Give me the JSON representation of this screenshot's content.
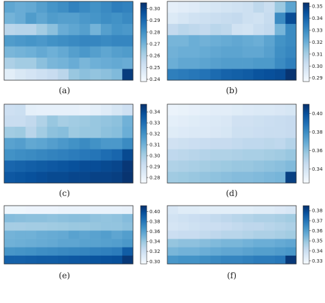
{
  "colors": {
    "colormap_low": "#f7fbff",
    "colormap_high": "#08306b",
    "frame": "#333333",
    "text": "#222222"
  },
  "chart_data": [
    {
      "type": "heatmap",
      "panel_label": "(a)",
      "colorbar_ticks": [
        "0.30",
        "0.29",
        "0.28",
        "0.27",
        "0.26",
        "0.25",
        "0.24"
      ],
      "colorbar_tick_values": [
        0.3,
        0.29,
        0.28,
        0.27,
        0.26,
        0.25,
        0.24
      ],
      "vmin": 0.238,
      "vmax": 0.305,
      "rows": 7,
      "cols": 12,
      "values": [
        [
          0.274,
          0.272,
          0.273,
          0.276,
          0.279,
          0.281,
          0.284,
          0.282,
          0.28,
          0.282,
          0.285,
          0.284
        ],
        [
          0.27,
          0.272,
          0.277,
          0.274,
          0.277,
          0.276,
          0.276,
          0.278,
          0.279,
          0.281,
          0.28,
          0.282
        ],
        [
          0.257,
          0.258,
          0.258,
          0.262,
          0.266,
          0.272,
          0.274,
          0.276,
          0.27,
          0.276,
          0.279,
          0.278
        ],
        [
          0.277,
          0.278,
          0.279,
          0.278,
          0.28,
          0.281,
          0.282,
          0.283,
          0.283,
          0.282,
          0.283,
          0.283
        ],
        [
          0.269,
          0.27,
          0.271,
          0.273,
          0.271,
          0.273,
          0.276,
          0.278,
          0.276,
          0.274,
          0.276,
          0.277
        ],
        [
          0.26,
          0.262,
          0.262,
          0.266,
          0.269,
          0.27,
          0.272,
          0.269,
          0.271,
          0.272,
          0.273,
          0.272
        ],
        [
          0.245,
          0.248,
          0.25,
          0.252,
          0.254,
          0.257,
          0.264,
          0.266,
          0.265,
          0.266,
          0.268,
          0.302
        ]
      ]
    },
    {
      "type": "heatmap",
      "panel_label": "(b)",
      "colorbar_ticks": [
        "0.35",
        "0.34",
        "0.33",
        "0.32",
        "0.31",
        "0.30",
        "0.29"
      ],
      "colorbar_tick_values": [
        0.35,
        0.34,
        0.33,
        0.32,
        0.31,
        0.3,
        0.29
      ],
      "vmin": 0.287,
      "vmax": 0.353,
      "rows": 7,
      "cols": 12,
      "values": [
        [
          0.293,
          0.294,
          0.295,
          0.297,
          0.298,
          0.299,
          0.3,
          0.301,
          0.305,
          0.302,
          0.312,
          0.323
        ],
        [
          0.296,
          0.298,
          0.3,
          0.301,
          0.302,
          0.303,
          0.304,
          0.301,
          0.3,
          0.303,
          0.33,
          0.346
        ],
        [
          0.304,
          0.306,
          0.305,
          0.304,
          0.306,
          0.305,
          0.3,
          0.299,
          0.302,
          0.304,
          0.318,
          0.33
        ],
        [
          0.318,
          0.318,
          0.32,
          0.319,
          0.32,
          0.321,
          0.322,
          0.321,
          0.32,
          0.323,
          0.328,
          0.33
        ],
        [
          0.319,
          0.32,
          0.32,
          0.321,
          0.322,
          0.323,
          0.323,
          0.322,
          0.322,
          0.324,
          0.329,
          0.331
        ],
        [
          0.32,
          0.322,
          0.322,
          0.323,
          0.324,
          0.325,
          0.325,
          0.325,
          0.326,
          0.326,
          0.33,
          0.333
        ],
        [
          0.333,
          0.334,
          0.335,
          0.336,
          0.338,
          0.34,
          0.341,
          0.342,
          0.344,
          0.345,
          0.346,
          0.352
        ]
      ]
    },
    {
      "type": "heatmap",
      "panel_label": "(c)",
      "colorbar_ticks": [
        "0.34",
        "0.33",
        "0.32",
        "0.31",
        "0.30",
        "0.29",
        "0.28"
      ],
      "colorbar_tick_values": [
        0.34,
        0.33,
        0.32,
        0.31,
        0.3,
        0.29,
        0.28
      ],
      "vmin": 0.275,
      "vmax": 0.347,
      "rows": 7,
      "cols": 12,
      "values": [
        [
          0.29,
          0.291,
          0.282,
          0.281,
          0.281,
          0.281,
          0.281,
          0.28,
          0.282,
          0.284,
          0.287,
          0.29
        ],
        [
          0.292,
          0.292,
          0.294,
          0.298,
          0.303,
          0.3,
          0.301,
          0.302,
          0.303,
          0.304,
          0.305,
          0.31
        ],
        [
          0.301,
          0.302,
          0.296,
          0.301,
          0.305,
          0.306,
          0.302,
          0.303,
          0.303,
          0.305,
          0.306,
          0.311
        ],
        [
          0.315,
          0.316,
          0.313,
          0.314,
          0.316,
          0.318,
          0.32,
          0.322,
          0.32,
          0.318,
          0.318,
          0.322
        ],
        [
          0.32,
          0.321,
          0.322,
          0.323,
          0.324,
          0.325,
          0.326,
          0.327,
          0.328,
          0.33,
          0.332,
          0.34
        ],
        [
          0.332,
          0.333,
          0.334,
          0.335,
          0.336,
          0.337,
          0.338,
          0.339,
          0.339,
          0.34,
          0.341,
          0.345
        ],
        [
          0.336,
          0.337,
          0.338,
          0.339,
          0.34,
          0.34,
          0.341,
          0.341,
          0.342,
          0.342,
          0.343,
          0.346
        ]
      ]
    },
    {
      "type": "heatmap",
      "panel_label": "(d)",
      "colorbar_ticks": [
        "0.40",
        "0.38",
        "0.36",
        "0.34"
      ],
      "colorbar_tick_values": [
        0.4,
        0.38,
        0.36,
        0.34
      ],
      "vmin": 0.325,
      "vmax": 0.41,
      "rows": 7,
      "cols": 12,
      "values": [
        [
          0.33,
          0.331,
          0.332,
          0.333,
          0.334,
          0.334,
          0.335,
          0.336,
          0.337,
          0.337,
          0.338,
          0.339
        ],
        [
          0.333,
          0.334,
          0.335,
          0.336,
          0.337,
          0.338,
          0.342,
          0.342,
          0.343,
          0.344,
          0.345,
          0.346
        ],
        [
          0.335,
          0.336,
          0.337,
          0.337,
          0.338,
          0.339,
          0.343,
          0.343,
          0.344,
          0.345,
          0.345,
          0.346
        ],
        [
          0.342,
          0.343,
          0.344,
          0.345,
          0.346,
          0.346,
          0.347,
          0.348,
          0.348,
          0.349,
          0.348,
          0.351
        ],
        [
          0.348,
          0.349,
          0.35,
          0.351,
          0.352,
          0.352,
          0.353,
          0.354,
          0.354,
          0.355,
          0.356,
          0.358
        ],
        [
          0.352,
          0.353,
          0.354,
          0.355,
          0.356,
          0.357,
          0.358,
          0.358,
          0.359,
          0.36,
          0.361,
          0.363
        ],
        [
          0.356,
          0.357,
          0.358,
          0.359,
          0.36,
          0.361,
          0.362,
          0.362,
          0.363,
          0.364,
          0.365,
          0.405
        ]
      ]
    },
    {
      "type": "heatmap",
      "panel_label": "(e)",
      "colorbar_ticks": [
        "0.40",
        "0.38",
        "0.36",
        "0.34",
        "0.32",
        "0.30"
      ],
      "colorbar_tick_values": [
        0.4,
        0.38,
        0.36,
        0.34,
        0.32,
        0.3
      ],
      "vmin": 0.295,
      "vmax": 0.412,
      "rows": 7,
      "cols": 12,
      "values": [
        [
          0.3,
          0.3,
          0.301,
          0.301,
          0.301,
          0.302,
          0.302,
          0.302,
          0.303,
          0.303,
          0.303,
          0.304
        ],
        [
          0.346,
          0.345,
          0.344,
          0.344,
          0.343,
          0.344,
          0.345,
          0.345,
          0.343,
          0.342,
          0.343,
          0.346
        ],
        [
          0.336,
          0.336,
          0.337,
          0.337,
          0.338,
          0.339,
          0.34,
          0.34,
          0.341,
          0.342,
          0.342,
          0.344
        ],
        [
          0.351,
          0.352,
          0.352,
          0.354,
          0.355,
          0.356,
          0.36,
          0.358,
          0.36,
          0.362,
          0.358,
          0.362
        ],
        [
          0.352,
          0.353,
          0.354,
          0.355,
          0.356,
          0.358,
          0.358,
          0.36,
          0.36,
          0.361,
          0.362,
          0.365
        ],
        [
          0.366,
          0.367,
          0.368,
          0.37,
          0.371,
          0.372,
          0.373,
          0.374,
          0.375,
          0.376,
          0.378,
          0.392
        ],
        [
          0.39,
          0.39,
          0.391,
          0.392,
          0.392,
          0.393,
          0.394,
          0.395,
          0.396,
          0.397,
          0.398,
          0.408
        ]
      ]
    },
    {
      "type": "heatmap",
      "panel_label": "(f)",
      "colorbar_ticks": [
        "0.38",
        "0.37",
        "0.36",
        "0.35",
        "0.34",
        "0.33"
      ],
      "colorbar_tick_values": [
        0.38,
        0.37,
        0.36,
        0.35,
        0.34,
        0.33
      ],
      "vmin": 0.327,
      "vmax": 0.385,
      "rows": 7,
      "cols": 12,
      "values": [
        [
          0.336,
          0.334,
          0.334,
          0.333,
          0.333,
          0.333,
          0.333,
          0.333,
          0.334,
          0.334,
          0.335,
          0.336
        ],
        [
          0.338,
          0.339,
          0.34,
          0.341,
          0.342,
          0.343,
          0.344,
          0.345,
          0.346,
          0.346,
          0.347,
          0.348
        ],
        [
          0.337,
          0.338,
          0.339,
          0.34,
          0.34,
          0.341,
          0.342,
          0.343,
          0.343,
          0.344,
          0.345,
          0.346
        ],
        [
          0.34,
          0.341,
          0.341,
          0.342,
          0.343,
          0.344,
          0.344,
          0.345,
          0.346,
          0.346,
          0.347,
          0.348
        ],
        [
          0.35,
          0.351,
          0.351,
          0.352,
          0.353,
          0.354,
          0.354,
          0.355,
          0.356,
          0.356,
          0.357,
          0.358
        ],
        [
          0.354,
          0.355,
          0.355,
          0.356,
          0.357,
          0.358,
          0.358,
          0.359,
          0.36,
          0.36,
          0.361,
          0.362
        ],
        [
          0.362,
          0.363,
          0.363,
          0.364,
          0.365,
          0.366,
          0.366,
          0.367,
          0.368,
          0.368,
          0.369,
          0.383
        ]
      ]
    }
  ]
}
